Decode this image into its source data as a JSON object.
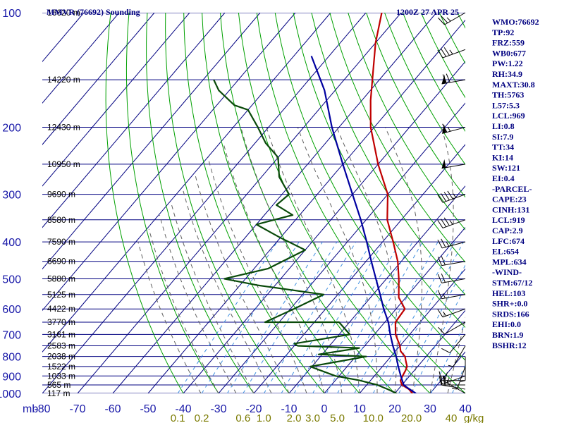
{
  "header": {
    "station": "MMVR (76692) Sounding",
    "time": "1200Z 27 APR 25"
  },
  "chart_data": {
    "type": "skew-t",
    "pressure_unit": "mb",
    "mixing_ratio_unit": "g/kg",
    "ylim": [
      1000,
      100
    ],
    "xlim": [
      -80,
      40
    ],
    "pressure_ticks": [
      "100",
      "200",
      "300",
      "400",
      "500",
      "600",
      "700",
      "800",
      "900",
      "1000"
    ],
    "temperature_ticks": [
      "-80",
      "-70",
      "-60",
      "-50",
      "-40",
      "-30",
      "-20",
      "-10",
      "0",
      "10",
      "20",
      "30",
      "40"
    ],
    "mixing_ratio_labels": [
      "0.1",
      "0.2",
      "0.6",
      "1.0",
      "2.0",
      "3.0",
      "5.0",
      "10.0",
      "20.0",
      "40"
    ],
    "height_labels": [
      {
        "p": 100,
        "text": "16620 m"
      },
      {
        "p": 150,
        "text": "14220 m"
      },
      {
        "p": 200,
        "text": "12430 m"
      },
      {
        "p": 250,
        "text": "10950 m"
      },
      {
        "p": 300,
        "text": "9690 m"
      },
      {
        "p": 350,
        "text": "8580 m"
      },
      {
        "p": 400,
        "text": "7590 m"
      },
      {
        "p": 450,
        "text": "6690 m"
      },
      {
        "p": 500,
        "text": "5880 m"
      },
      {
        "p": 550,
        "text": "5125 m"
      },
      {
        "p": 600,
        "text": "4422 m"
      },
      {
        "p": 650,
        "text": "3770 m"
      },
      {
        "p": 700,
        "text": "3161 m"
      },
      {
        "p": 750,
        "text": "2583 m"
      },
      {
        "p": 800,
        "text": "2038 m"
      },
      {
        "p": 850,
        "text": "1522 m"
      },
      {
        "p": 900,
        "text": "1033 m"
      },
      {
        "p": 950,
        "text": "565 m"
      },
      {
        "p": 1000,
        "text": "117 m"
      }
    ],
    "series": [
      {
        "name": "temperature",
        "color": "#c00000",
        "points": [
          [
            1000,
            25.0
          ],
          [
            975,
            23.0
          ],
          [
            950,
            20.0
          ],
          [
            925,
            18.5
          ],
          [
            900,
            18.0
          ],
          [
            870,
            17.5
          ],
          [
            850,
            17.0
          ],
          [
            825,
            15.5
          ],
          [
            800,
            14.0
          ],
          [
            775,
            11.5
          ],
          [
            750,
            10.0
          ],
          [
            700,
            6.0
          ],
          [
            650,
            3.0
          ],
          [
            600,
            2.5
          ],
          [
            560,
            -2.0
          ],
          [
            500,
            -6.5
          ],
          [
            450,
            -11.0
          ],
          [
            400,
            -17.0
          ],
          [
            350,
            -24.0
          ],
          [
            300,
            -30.0
          ],
          [
            250,
            -40.0
          ],
          [
            200,
            -51.0
          ],
          [
            170,
            -57.5
          ],
          [
            150,
            -62.0
          ],
          [
            120,
            -70.0
          ],
          [
            100,
            -75.5
          ]
        ]
      },
      {
        "name": "dewpoint",
        "color": "#0a4a0a",
        "points": [
          [
            1000,
            20.5
          ],
          [
            975,
            17.0
          ],
          [
            950,
            13.0
          ],
          [
            925,
            7.0
          ],
          [
            900,
            -1.0
          ],
          [
            850,
            -10.5
          ],
          [
            800,
            3.0
          ],
          [
            790,
            -11.0
          ],
          [
            760,
            -1.0
          ],
          [
            750,
            -19.0
          ],
          [
            740,
            -20.5
          ],
          [
            700,
            -7.0
          ],
          [
            650,
            -13.0
          ],
          [
            650,
            -34.0
          ],
          [
            600,
            -29.0
          ],
          [
            550,
            -24.0
          ],
          [
            520,
            -45.0
          ],
          [
            500,
            -56.0
          ],
          [
            470,
            -46.0
          ],
          [
            420,
            -40.0
          ],
          [
            390,
            -50.0
          ],
          [
            360,
            -60.0
          ],
          [
            340,
            -52.0
          ],
          [
            320,
            -59.0
          ],
          [
            300,
            -58.0
          ],
          [
            270,
            -65.0
          ],
          [
            240,
            -70.0
          ],
          [
            220,
            -77.0
          ],
          [
            200,
            -83.0
          ],
          [
            180,
            -90.0
          ],
          [
            175,
            -95.0
          ],
          [
            160,
            -103.0
          ],
          [
            150,
            -107.0
          ]
        ]
      },
      {
        "name": "parcel",
        "color": "#0000a0",
        "points": [
          [
            1000,
            26.0
          ],
          [
            969,
            22.5
          ],
          [
            950,
            20.5
          ],
          [
            900,
            17.5
          ],
          [
            850,
            14.5
          ],
          [
            800,
            11.5
          ],
          [
            750,
            8.0
          ],
          [
            700,
            4.5
          ],
          [
            650,
            1.0
          ],
          [
            600,
            -3.5
          ],
          [
            550,
            -8.0
          ],
          [
            500,
            -13.0
          ],
          [
            450,
            -18.5
          ],
          [
            400,
            -24.5
          ],
          [
            350,
            -31.5
          ],
          [
            300,
            -40.0
          ],
          [
            250,
            -50.0
          ],
          [
            200,
            -62.0
          ],
          [
            160,
            -73.0
          ],
          [
            130,
            -85.0
          ]
        ]
      }
    ],
    "wind_barbs": [
      {
        "p": 1000,
        "dir": 300,
        "spd": 15
      },
      {
        "p": 975,
        "dir": 280,
        "spd": 20
      },
      {
        "p": 950,
        "dir": 270,
        "spd": 25
      },
      {
        "p": 925,
        "dir": 270,
        "spd": 15
      },
      {
        "p": 900,
        "dir": 250,
        "spd": 5
      },
      {
        "p": 850,
        "dir": 200,
        "spd": 5
      },
      {
        "p": 800,
        "dir": 180,
        "spd": 5
      },
      {
        "p": 750,
        "dir": 210,
        "spd": 5
      },
      {
        "p": 700,
        "dir": 220,
        "spd": 10
      },
      {
        "p": 650,
        "dir": 240,
        "spd": 10
      },
      {
        "p": 600,
        "dir": 250,
        "spd": 15
      },
      {
        "p": 550,
        "dir": 260,
        "spd": 15
      },
      {
        "p": 500,
        "dir": 260,
        "spd": 20
      },
      {
        "p": 450,
        "dir": 260,
        "spd": 20
      },
      {
        "p": 400,
        "dir": 255,
        "spd": 25
      },
      {
        "p": 350,
        "dir": 250,
        "spd": 35
      },
      {
        "p": 300,
        "dir": 250,
        "spd": 45
      },
      {
        "p": 250,
        "dir": 260,
        "spd": 50
      },
      {
        "p": 200,
        "dir": 255,
        "spd": 65
      },
      {
        "p": 150,
        "dir": 260,
        "spd": 70
      },
      {
        "p": 125,
        "dir": 250,
        "spd": 35
      },
      {
        "p": 100,
        "dir": 240,
        "spd": 25
      }
    ],
    "colors": {
      "isobar": "#000080",
      "isotherm": "#000080",
      "dry_adiabat": "#00a000",
      "moist_adiabat": "#606060",
      "mixing_ratio": "#4090e0"
    }
  },
  "indices": [
    "WMO:76692",
    "TP:92",
    "FRZ:559",
    "WB0:677",
    "PW:1.22",
    "RH:34.9",
    "MAXT:30.8",
    "TH:5763",
    "L57:5.3",
    "LCL:969",
    "LI:0.8",
    "SI:7.9",
    "TT:34",
    "KI:14",
    "SW:121",
    "EI:0.4",
    "-PARCEL-",
    "CAPE:23",
    "CINH:131",
    "LCL:919",
    "CAP:2.9",
    "LFC:674",
    "EL:654",
    "MPL:634",
    "-WIND-",
    "STM:67/12",
    "HEL:103",
    "SHR+:0.0",
    "SRDS:166",
    "EHI:0.0",
    "BRN:1.9",
    "BSHR:12"
  ]
}
